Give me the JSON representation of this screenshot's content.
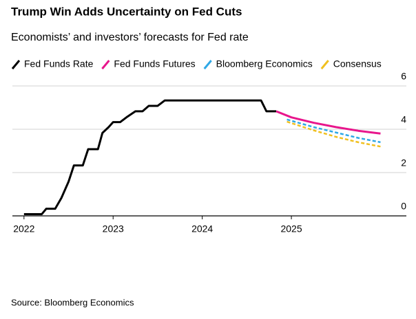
{
  "chart_data": {
    "type": "line",
    "title": "Trump Win Adds Uncertainty on Fed Cuts",
    "subtitle": "Economists’ and investors’ forecasts for Fed rate",
    "source": "Source: Bloomberg Economics",
    "xlim": [
      2021.87,
      2026.29
    ],
    "xticks": [
      2022,
      2023,
      2024,
      2025
    ],
    "ylim": [
      0,
      6
    ],
    "yticks": [
      0,
      2,
      4,
      6
    ],
    "grid": true,
    "legend": "top",
    "series": [
      {
        "name": "Fed Funds Rate",
        "color": "#000000",
        "dashed": false,
        "x": [
          2022.0,
          2022.2,
          2022.25,
          2022.35,
          2022.42,
          2022.5,
          2022.56,
          2022.66,
          2022.72,
          2022.83,
          2022.88,
          2022.95,
          2023.0,
          2023.08,
          2023.16,
          2023.25,
          2023.33,
          2023.4,
          2023.5,
          2023.58,
          2024.66,
          2024.72,
          2024.83
        ],
        "values": [
          0.08,
          0.08,
          0.33,
          0.33,
          0.83,
          1.58,
          2.33,
          2.33,
          3.08,
          3.08,
          3.83,
          4.1,
          4.33,
          4.33,
          4.58,
          4.83,
          4.83,
          5.08,
          5.08,
          5.33,
          5.33,
          4.83,
          4.83
        ]
      },
      {
        "name": "Fed Funds Futures",
        "color": "#e8168c",
        "dashed": false,
        "x": [
          2024.83,
          2025.0,
          2025.25,
          2025.5,
          2025.75,
          2026.0
        ],
        "values": [
          4.83,
          4.55,
          4.3,
          4.1,
          3.93,
          3.8
        ]
      },
      {
        "name": "Bloomberg Economics",
        "color": "#2fa8e6",
        "dashed": true,
        "x": [
          2024.95,
          2025.25,
          2025.5,
          2025.75,
          2026.0
        ],
        "values": [
          4.45,
          4.1,
          3.85,
          3.6,
          3.4
        ]
      },
      {
        "name": "Consensus",
        "color": "#f0c020",
        "dashed": true,
        "x": [
          2024.95,
          2025.25,
          2025.5,
          2025.75,
          2026.0
        ],
        "values": [
          4.35,
          3.95,
          3.65,
          3.4,
          3.2
        ]
      }
    ]
  }
}
